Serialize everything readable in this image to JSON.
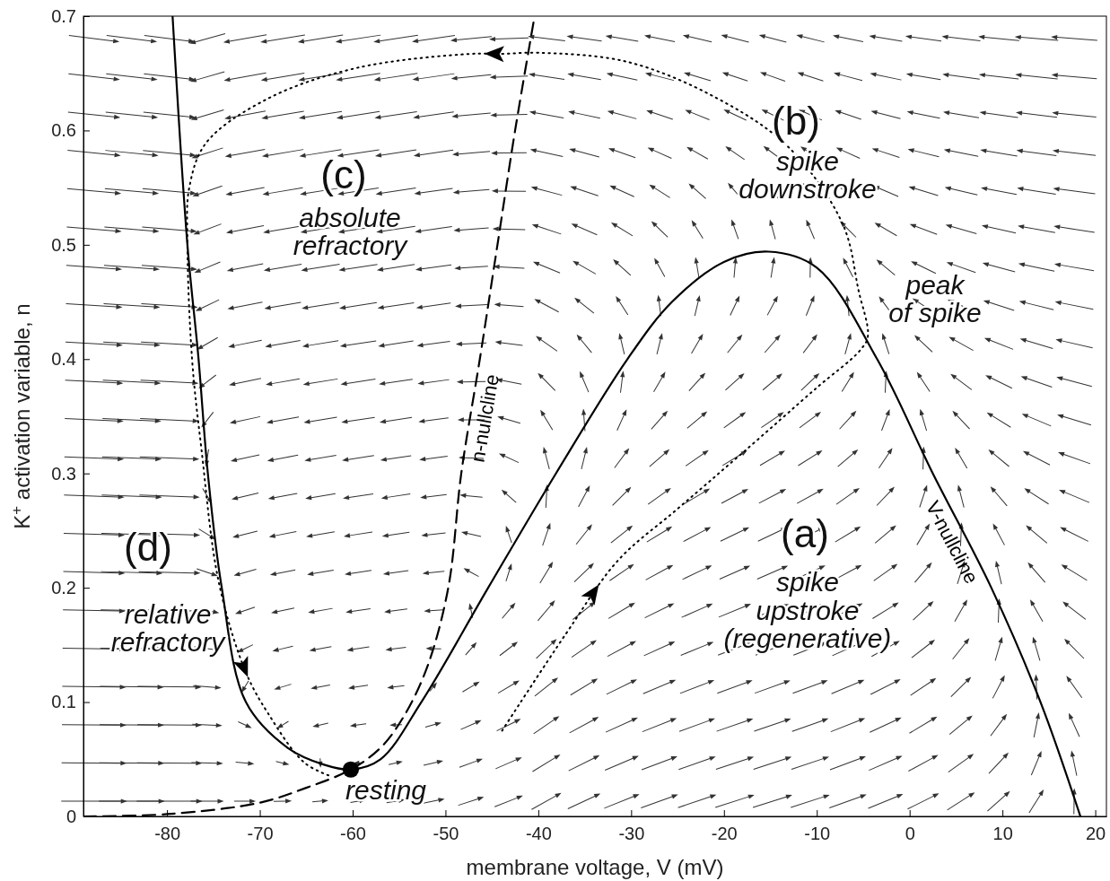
{
  "chart_data": {
    "type": "line",
    "xlabel": "membrane voltage, V (mV)",
    "ylabel": "K$^{+}$ activation variable, n",
    "xlim": [
      -89,
      21.2
    ],
    "xticks": [
      -80,
      -70,
      -60,
      -50,
      -40,
      -30,
      -20,
      -10,
      0,
      10,
      20
    ],
    "ylim": [
      0,
      0.7
    ],
    "yticks": [
      0,
      0.1,
      0.2,
      0.3,
      0.4,
      0.5,
      0.6,
      0.7
    ],
    "grid": false,
    "legend": false,
    "marker": "none",
    "series": [
      {
        "name": "V-nullcline",
        "color": "#000000",
        "line_style": "solid",
        "x": [
          -79.4,
          -77.8,
          -76.6,
          -75.6,
          -74.1,
          -71.5,
          -67,
          -63,
          -60.2,
          -57,
          -52.6,
          -45.4,
          -38.1,
          -30.4,
          -25.6,
          -20,
          -15.2,
          -10,
          -3.5,
          2.5,
          8.8,
          14.1,
          18.4
        ],
        "values": [
          0.7,
          0.5,
          0.4,
          0.3,
          0.2,
          0.1,
          0.06,
          0.045,
          0.041,
          0.05,
          0.1,
          0.2,
          0.3,
          0.4,
          0.45,
          0.485,
          0.494,
          0.48,
          0.4,
          0.3,
          0.2,
          0.1,
          0
        ]
      },
      {
        "name": "n-nullcline",
        "color": "#000000",
        "line_style": "dashed",
        "x": [
          -89,
          -80,
          -70,
          -65,
          -60.2,
          -57,
          -54.6,
          -52,
          -49.7,
          -48.3,
          -46.3,
          -44.4,
          -42.5,
          -40.4
        ],
        "values": [
          0,
          0.002,
          0.012,
          0.025,
          0.041,
          0.06,
          0.086,
          0.13,
          0.2,
          0.3,
          0.4,
          0.5,
          0.6,
          0.7
        ]
      },
      {
        "color": "#000000",
        "line_style": "dotted",
        "x": [
          -43.9,
          -37,
          -31.4,
          -25,
          -18,
          -10,
          -5.3,
          -4.5,
          -5.5,
          -7.2,
          -13,
          -20.7,
          -30.4,
          -40,
          -43.9,
          -47.3,
          -59.4,
          -69.1,
          -75.8,
          -77.6,
          -77.8,
          -77.3,
          -76.3,
          -74.4,
          -71.5,
          -69.1,
          -65.2,
          -62.3
        ],
        "values": [
          0.075,
          0.16,
          0.224,
          0.269,
          0.318,
          0.375,
          0.408,
          0.42,
          0.46,
          0.518,
          0.585,
          0.628,
          0.66,
          0.668,
          0.667,
          0.667,
          0.655,
          0.628,
          0.589,
          0.55,
          0.502,
          0.4,
          0.322,
          0.204,
          0.126,
          0.09,
          0.047,
          0.035
        ]
      },
      {
        "type": "scatter",
        "marker": "circle",
        "color": "#000000",
        "x": [
          -60.2
        ],
        "values": [
          0.041
        ]
      }
    ],
    "annotations": [
      "(a)",
      "spike\nupstroke\n(regenerative)",
      "(b)",
      "spike\ndownstroke",
      "(c)",
      "absolute\nrefractory",
      "(d)",
      "relative\nrefractory",
      "peak\nof spike",
      "resting"
    ]
  }
}
